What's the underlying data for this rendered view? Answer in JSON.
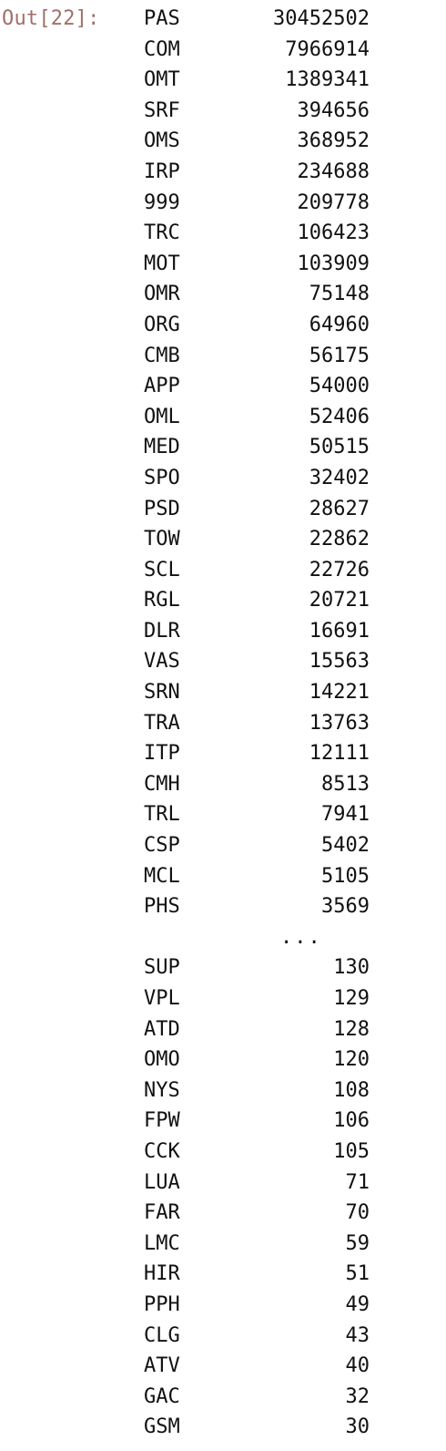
{
  "output": {
    "prompt": "Out[22]:",
    "top_rows": [
      {
        "key": "PAS",
        "value": "30452502"
      },
      {
        "key": "COM",
        "value": "7966914"
      },
      {
        "key": "OMT",
        "value": "1389341"
      },
      {
        "key": "SRF",
        "value": "394656"
      },
      {
        "key": "OMS",
        "value": "368952"
      },
      {
        "key": "IRP",
        "value": "234688"
      },
      {
        "key": "999",
        "value": "209778"
      },
      {
        "key": "TRC",
        "value": "106423"
      },
      {
        "key": "MOT",
        "value": "103909"
      },
      {
        "key": "OMR",
        "value": "75148"
      },
      {
        "key": "ORG",
        "value": "64960"
      },
      {
        "key": "CMB",
        "value": "56175"
      },
      {
        "key": "APP",
        "value": "54000"
      },
      {
        "key": "OML",
        "value": "52406"
      },
      {
        "key": "MED",
        "value": "50515"
      },
      {
        "key": "SPO",
        "value": "32402"
      },
      {
        "key": "PSD",
        "value": "28627"
      },
      {
        "key": "TOW",
        "value": "22862"
      },
      {
        "key": "SCL",
        "value": "22726"
      },
      {
        "key": "RGL",
        "value": "20721"
      },
      {
        "key": "DLR",
        "value": "16691"
      },
      {
        "key": "VAS",
        "value": "15563"
      },
      {
        "key": "SRN",
        "value": "14221"
      },
      {
        "key": "TRA",
        "value": "13763"
      },
      {
        "key": "ITP",
        "value": "12111"
      },
      {
        "key": "CMH",
        "value": "8513"
      },
      {
        "key": "TRL",
        "value": "7941"
      },
      {
        "key": "CSP",
        "value": "5402"
      },
      {
        "key": "MCL",
        "value": "5105"
      },
      {
        "key": "PHS",
        "value": "3569"
      }
    ],
    "ellipsis": "...",
    "bottom_rows": [
      {
        "key": "SUP",
        "value": "130"
      },
      {
        "key": "VPL",
        "value": "129"
      },
      {
        "key": "ATD",
        "value": "128"
      },
      {
        "key": "OMO",
        "value": "120"
      },
      {
        "key": "NYS",
        "value": "108"
      },
      {
        "key": "FPW",
        "value": "106"
      },
      {
        "key": "CCK",
        "value": "105"
      },
      {
        "key": "LUA",
        "value": "71"
      },
      {
        "key": "FAR",
        "value": "70"
      },
      {
        "key": "LMC",
        "value": "59"
      },
      {
        "key": "HIR",
        "value": "51"
      },
      {
        "key": "PPH",
        "value": "49"
      },
      {
        "key": "CLG",
        "value": "43"
      },
      {
        "key": "ATV",
        "value": "40"
      },
      {
        "key": "GAC",
        "value": "32"
      },
      {
        "key": "GSM",
        "value": "30"
      }
    ]
  }
}
